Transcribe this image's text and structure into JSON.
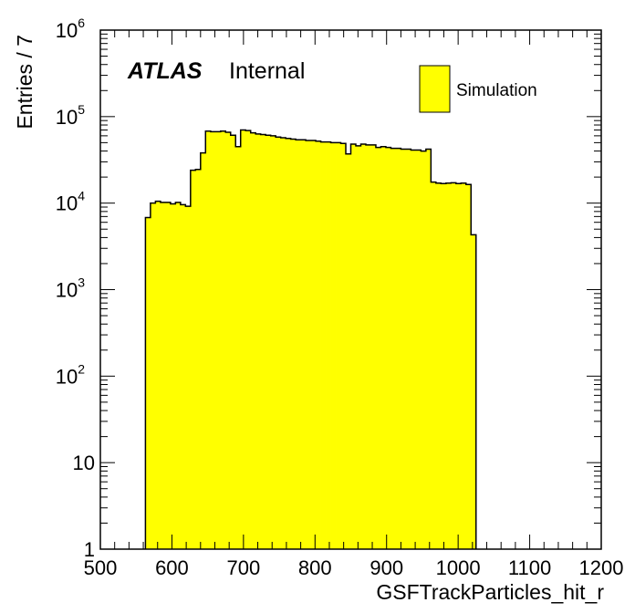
{
  "chart_data": {
    "type": "histogram",
    "experiment_label": "ATLAS",
    "status_label": "Internal",
    "xlabel": "GSFTrackParticles_hit_r",
    "ylabel": "Entries / 7",
    "xlim": [
      500,
      1200
    ],
    "ylim": [
      1,
      1000000
    ],
    "log_y": true,
    "grid": false,
    "legend": {
      "position": "top-right",
      "entries": [
        {
          "name": "Simulation",
          "color": "#ffff00"
        }
      ]
    },
    "fill_color": "#ffff00",
    "line_color": "#000000",
    "bin_width": 7,
    "bin_start": 563,
    "x_ticks": [
      "500",
      "600",
      "700",
      "800",
      "900",
      "1000",
      "1100",
      "1200"
    ],
    "y_ticks": [
      {
        "value": 1,
        "base": "1",
        "exp": ""
      },
      {
        "value": 10,
        "base": "10",
        "exp": ""
      },
      {
        "value": 100,
        "base": "10",
        "exp": "2"
      },
      {
        "value": 1000,
        "base": "10",
        "exp": "3"
      },
      {
        "value": 10000,
        "base": "10",
        "exp": "4"
      },
      {
        "value": 100000,
        "base": "10",
        "exp": "5"
      },
      {
        "value": 1000000,
        "base": "10",
        "exp": "6"
      }
    ],
    "values": [
      6800,
      10000,
      10500,
      10200,
      10200,
      9800,
      10200,
      9600,
      9200,
      24000,
      24500,
      38000,
      68000,
      67000,
      67000,
      68000,
      66000,
      61000,
      45000,
      70000,
      69000,
      65000,
      63000,
      62000,
      61000,
      60000,
      58000,
      57000,
      56000,
      55000,
      54000,
      54000,
      53000,
      53000,
      52000,
      51000,
      51000,
      50000,
      50000,
      49000,
      37000,
      48000,
      46000,
      48000,
      47000,
      47000,
      44000,
      45000,
      44000,
      43000,
      43000,
      42000,
      42000,
      41000,
      41000,
      40000,
      42000,
      17500,
      17000,
      16800,
      17000,
      17200,
      16800,
      17000,
      16400,
      4300
    ]
  }
}
